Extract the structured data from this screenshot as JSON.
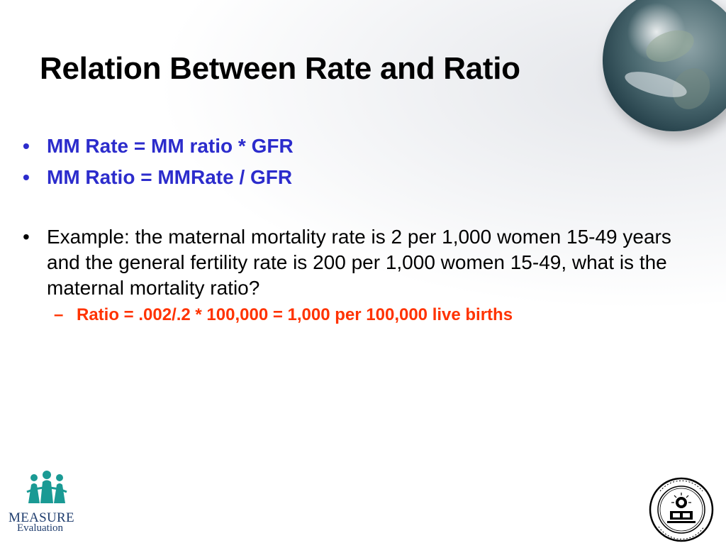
{
  "slide": {
    "title": "Relation Between Rate and Ratio",
    "bullets": [
      {
        "text": "MM Rate = MM ratio * GFR"
      },
      {
        "text": "MM Ratio = MMRate / GFR"
      },
      {
        "text": "Example: the maternal mortality rate is 2 per 1,000 women 15-49 years and the general fertility rate is 200 per 1,000 women 15-49, what is the maternal mortality ratio?"
      }
    ],
    "sub_bullet": {
      "text": "Ratio = .002/.2 * 100,000 = 1,000 per 100,000 live births"
    },
    "bullet_char": "•",
    "dash_char": "–"
  },
  "logos": {
    "measure": {
      "line1": "MEASURE",
      "line2": "Evaluation",
      "color": "#1f3d6e",
      "accent": "#1a9a94"
    }
  },
  "colors": {
    "blue_text": "#2c2ccc",
    "red_text": "#ff3300"
  }
}
